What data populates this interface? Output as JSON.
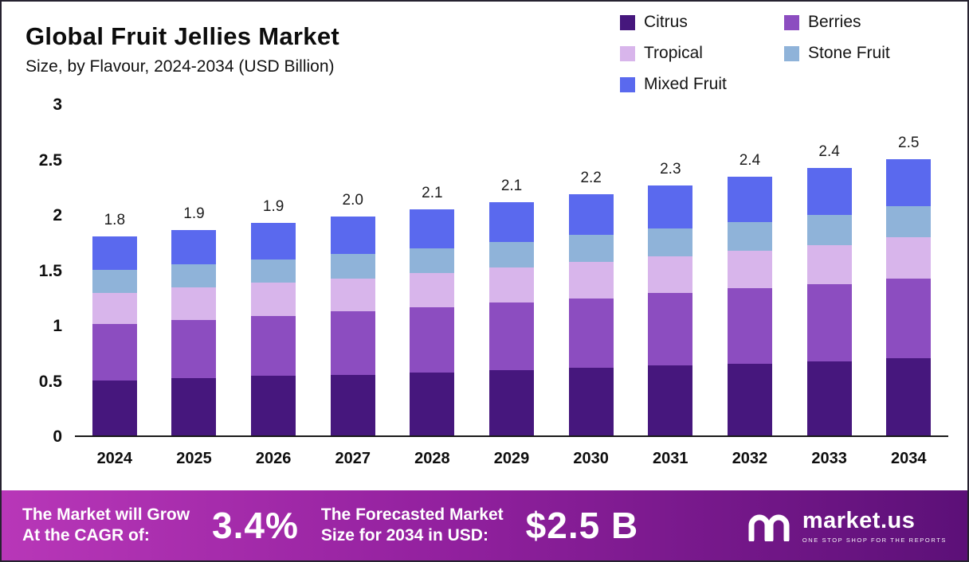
{
  "title": "Global Fruit Jellies Market",
  "subtitle": "Size, by Flavour, 2024-2034 (USD Billion)",
  "legend": [
    {
      "label": "Citrus",
      "color": "#46177d"
    },
    {
      "label": "Berries",
      "color": "#8c4dc0"
    },
    {
      "label": "Tropical",
      "color": "#d8b5eb"
    },
    {
      "label": "Stone Fruit",
      "color": "#8fb3d9"
    },
    {
      "label": "Mixed Fruit",
      "color": "#5a69ee"
    }
  ],
  "chart_data": {
    "type": "bar",
    "stacked": true,
    "title": "Global Fruit Jellies Market Size, by Flavour, 2024-2034 (USD Billion)",
    "categories": [
      "2024",
      "2025",
      "2026",
      "2027",
      "2028",
      "2029",
      "2030",
      "2031",
      "2032",
      "2033",
      "2034"
    ],
    "series": [
      {
        "name": "Citrus",
        "values": [
          0.5,
          0.52,
          0.54,
          0.55,
          0.57,
          0.59,
          0.61,
          0.63,
          0.65,
          0.67,
          0.7
        ]
      },
      {
        "name": "Berries",
        "values": [
          0.51,
          0.52,
          0.54,
          0.57,
          0.59,
          0.61,
          0.63,
          0.66,
          0.68,
          0.7,
          0.72
        ]
      },
      {
        "name": "Tropical",
        "values": [
          0.28,
          0.3,
          0.3,
          0.3,
          0.31,
          0.32,
          0.33,
          0.33,
          0.34,
          0.35,
          0.37
        ]
      },
      {
        "name": "Stone Fruit",
        "values": [
          0.21,
          0.21,
          0.21,
          0.22,
          0.22,
          0.23,
          0.24,
          0.25,
          0.26,
          0.27,
          0.28
        ]
      },
      {
        "name": "Mixed Fruit",
        "values": [
          0.3,
          0.31,
          0.33,
          0.34,
          0.35,
          0.36,
          0.37,
          0.39,
          0.41,
          0.43,
          0.43
        ]
      }
    ],
    "totals": [
      1.8,
      1.9,
      1.9,
      2.0,
      2.1,
      2.1,
      2.2,
      2.3,
      2.4,
      2.4,
      2.5
    ],
    "xlabel": "",
    "ylabel": "",
    "ylim": [
      0,
      3
    ],
    "yticks": [
      0,
      0.5,
      1,
      1.5,
      2,
      2.5,
      3
    ],
    "grid": false,
    "legend_position": "top-right"
  },
  "footer": {
    "cagr_label_line1": "The Market will Grow",
    "cagr_label_line2": "At the CAGR of:",
    "cagr_value": "3.4%",
    "forecast_label_line1": "The Forecasted Market",
    "forecast_label_line2": "Size for 2034 in USD:",
    "forecast_value": "$2.5 B",
    "brand_name": "market.us",
    "brand_tagline": "ONE STOP SHOP FOR THE REPORTS"
  }
}
